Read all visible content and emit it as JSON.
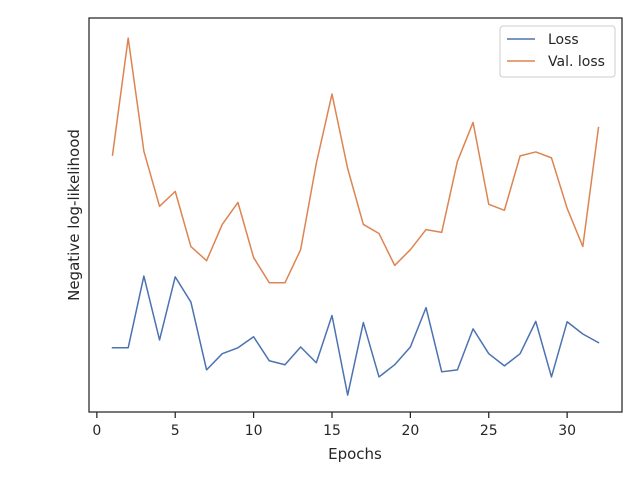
{
  "chart_data": {
    "type": "line",
    "xlabel": "Epochs",
    "ylabel": "Negative log-likelihood",
    "xlim": [
      -0.5,
      33.5
    ],
    "ylim": [
      0,
      100
    ],
    "xticks": [
      0,
      5,
      10,
      15,
      20,
      25,
      30
    ],
    "yticks_visible": false,
    "legend_position": "top-right",
    "grid": false,
    "x": [
      1,
      2,
      3,
      4,
      5,
      6,
      7,
      8,
      9,
      10,
      11,
      12,
      13,
      14,
      15,
      16,
      17,
      18,
      19,
      20,
      21,
      22,
      23,
      24,
      25,
      26,
      27,
      28,
      29,
      30,
      31,
      32
    ],
    "series": [
      {
        "name": "Loss",
        "color": "#4c72b0",
        "values": [
          16.3,
          16.3,
          34.5,
          18.3,
          34.3,
          27.9,
          10.7,
          14.8,
          16.3,
          19.1,
          13.0,
          12.0,
          16.5,
          12.5,
          24.5,
          4.3,
          22.7,
          8.9,
          12.0,
          16.5,
          26.5,
          10.2,
          10.7,
          21.1,
          14.8,
          11.7,
          14.8,
          23.0,
          8.9,
          22.9,
          19.8,
          17.6
        ]
      },
      {
        "name": "Val. loss",
        "color": "#dd8452",
        "values": [
          65.2,
          94.9,
          66.2,
          52.2,
          56.0,
          42.0,
          38.4,
          47.6,
          53.2,
          39.2,
          32.8,
          32.8,
          41.2,
          63.1,
          80.7,
          61.8,
          47.6,
          45.3,
          37.2,
          41.2,
          46.3,
          45.6,
          63.6,
          73.5,
          52.7,
          51.2,
          65.0,
          66.0,
          64.5,
          51.7,
          42.0,
          72.2
        ]
      }
    ]
  }
}
